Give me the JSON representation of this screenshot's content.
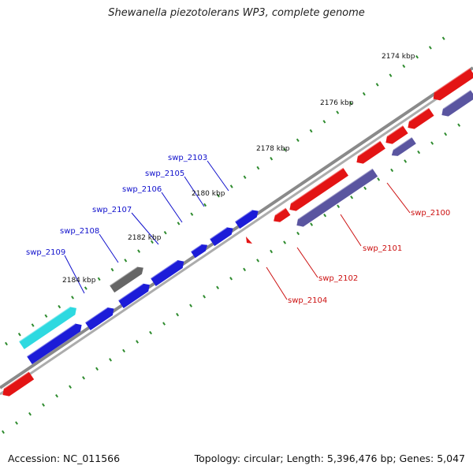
{
  "title": "Shewanella piezotolerans WP3, complete genome",
  "footer": {
    "accession": "Accession: NC_011566",
    "meta": "Topology: circular; Length: 5,396,476 bp; Genes: 5,047"
  },
  "colors": {
    "backbone": "#8a8a8a",
    "tick": "#2e8b2e",
    "forward_cds": "#1c1cd8",
    "forward_other": "#666666",
    "forward_rna": "#2ed9e0",
    "reverse_cds": "#e31414",
    "reverse_other": "#5a55a0",
    "label_forward": "#1010cc",
    "label_reverse": "#cc1010"
  },
  "scale_labels": [
    "2174 kbp",
    "2176 kbp",
    "2178 kbp",
    "2180 kbp",
    "2182 kbp",
    "2184 kbp"
  ],
  "gene_labels_forward": [
    "swp_2103",
    "swp_2105",
    "swp_2106",
    "swp_2107",
    "swp_2108",
    "swp_2109"
  ],
  "gene_labels_reverse": [
    "swp_2100",
    "swp_2101",
    "swp_2102",
    "swp_2104"
  ]
}
